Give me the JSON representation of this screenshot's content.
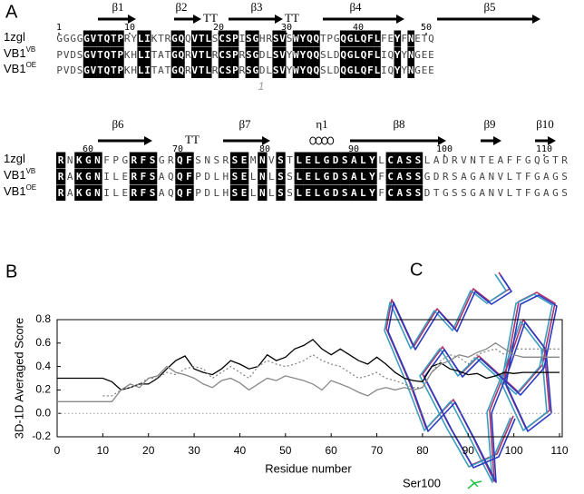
{
  "figure": {
    "panel_a": "A",
    "panel_b": "B",
    "panel_c": "C"
  },
  "alignment": {
    "disulfide": "1",
    "blocks": [
      {
        "secondary_structure": [
          "β1",
          "β2",
          "TT",
          "β3",
          "TT",
          "β4",
          "β5"
        ],
        "numbers": [
          1,
          10,
          20,
          30,
          40,
          50
        ],
        "rows": [
          {
            "name": "1zgl",
            "sequence": "GGGGGVTQTPRYLIKTRGQQVTLSCSPISGHRSVSWYQQTPGQGLQFLFEYFNETQ"
          },
          {
            "name": "VB1",
            "sup": "VB",
            "sequence": "PVDSGVTQTPKHLITATGQRVTLRCSPRSGDLSVYWYQQSLDQGLQFLIQYYNGEE"
          },
          {
            "name": "VB1",
            "sup": "OE",
            "sequence": "PVDSGVTQTPKHLITATGQRVTLRCSPRSGDLSVYWYQQSLDQGLQFLIQYYNGEE"
          }
        ]
      },
      {
        "secondary_structure": [
          "β6",
          "TT",
          "β7",
          "η1",
          "β8",
          "β9",
          "β10"
        ],
        "numbers": [
          60,
          70,
          80,
          90,
          100,
          110
        ],
        "rows": [
          {
            "name": "1zgl",
            "sequence": "RNKGNFPGRFSGRQFSNSRSEMNVSTLELGDSALYLCASSLADRVNTEAFFGQGTR"
          },
          {
            "name": "VB1",
            "sup": "VB",
            "sequence": "RAKGNILERFSAQQFPDLHSELNLSSLELGDSALYFCASSGDRSAGANVLTFGAGS"
          },
          {
            "name": "VB1",
            "sup": "OE",
            "sequence": "RAKGNILERFSAQQFPDLHSELNLSSLELGDSALYFCASSDTGSSGANVLTFGAGS"
          }
        ]
      }
    ]
  },
  "chart_data": {
    "type": "line",
    "xlabel": "Residue number",
    "ylabel": "3D-1D Averaged Score",
    "x": [
      0,
      2,
      4,
      6,
      8,
      10,
      12,
      14,
      16,
      18,
      20,
      22,
      24,
      26,
      28,
      30,
      32,
      34,
      36,
      38,
      40,
      42,
      44,
      46,
      48,
      50,
      52,
      54,
      56,
      58,
      60,
      62,
      64,
      66,
      68,
      70,
      72,
      74,
      76,
      78,
      80,
      82,
      84,
      86,
      88,
      90,
      92,
      94,
      96,
      98,
      100,
      102,
      104,
      106,
      108,
      110
    ],
    "series": [
      {
        "color": "#000000",
        "dash": "solid",
        "values": [
          0.3,
          0.3,
          0.3,
          0.3,
          0.3,
          0.3,
          0.27,
          0.2,
          0.22,
          0.25,
          0.25,
          0.3,
          0.38,
          0.45,
          0.49,
          0.38,
          0.35,
          0.33,
          0.38,
          0.45,
          0.42,
          0.38,
          0.4,
          0.5,
          0.45,
          0.48,
          0.55,
          0.58,
          0.63,
          0.55,
          0.5,
          0.55,
          0.5,
          0.45,
          0.42,
          0.48,
          0.42,
          0.35,
          0.3,
          0.28,
          0.27,
          0.4,
          0.43,
          0.38,
          0.36,
          0.33,
          0.34,
          0.3,
          0.32,
          0.35,
          0.34,
          0.35,
          0.35,
          0.35,
          0.35,
          0.35
        ]
      },
      {
        "color": "#888888",
        "dash": "solid",
        "values": [
          0.1,
          0.1,
          0.1,
          0.1,
          0.1,
          0.1,
          0.1,
          0.2,
          0.25,
          0.22,
          0.3,
          0.32,
          0.4,
          0.35,
          0.33,
          0.3,
          0.25,
          0.22,
          0.28,
          0.3,
          0.26,
          0.2,
          0.25,
          0.3,
          0.28,
          0.32,
          0.3,
          0.28,
          0.25,
          0.2,
          0.28,
          0.25,
          0.22,
          0.18,
          0.15,
          0.2,
          0.22,
          0.2,
          0.22,
          0.2,
          0.22,
          0.35,
          0.42,
          0.45,
          0.5,
          0.48,
          0.52,
          0.55,
          0.6,
          0.55,
          0.5,
          0.48,
          0.48,
          0.48,
          0.48,
          0.48
        ]
      },
      {
        "color": "#888888",
        "dash": "dotted",
        "values": [
          null,
          null,
          null,
          null,
          null,
          0.15,
          0.15,
          0.2,
          0.22,
          0.25,
          0.3,
          0.3,
          0.35,
          0.33,
          0.38,
          0.4,
          0.38,
          0.3,
          0.35,
          0.4,
          0.35,
          0.3,
          0.4,
          0.45,
          0.42,
          0.4,
          0.42,
          0.45,
          0.5,
          0.45,
          0.42,
          0.4,
          0.35,
          0.3,
          0.32,
          0.35,
          0.3,
          0.28,
          0.25,
          0.22,
          0.22,
          0.35,
          0.45,
          0.5,
          0.48,
          0.42,
          0.5,
          0.53,
          0.55,
          0.5,
          0.55,
          0.55,
          0.55,
          0.55,
          0.55,
          0.55
        ]
      }
    ],
    "xlim": [
      0,
      110
    ],
    "ylim": [
      -0.2,
      0.8
    ],
    "xticks": [
      0,
      10,
      20,
      30,
      40,
      50,
      60,
      70,
      80,
      90,
      100,
      110
    ],
    "yticks": [
      -0.2,
      {
        "value": 0,
        "label": "0.0"
      },
      0.2,
      0.4,
      0.6,
      0.8
    ],
    "zero_line": true
  },
  "structure": {
    "label": "Ser100"
  }
}
